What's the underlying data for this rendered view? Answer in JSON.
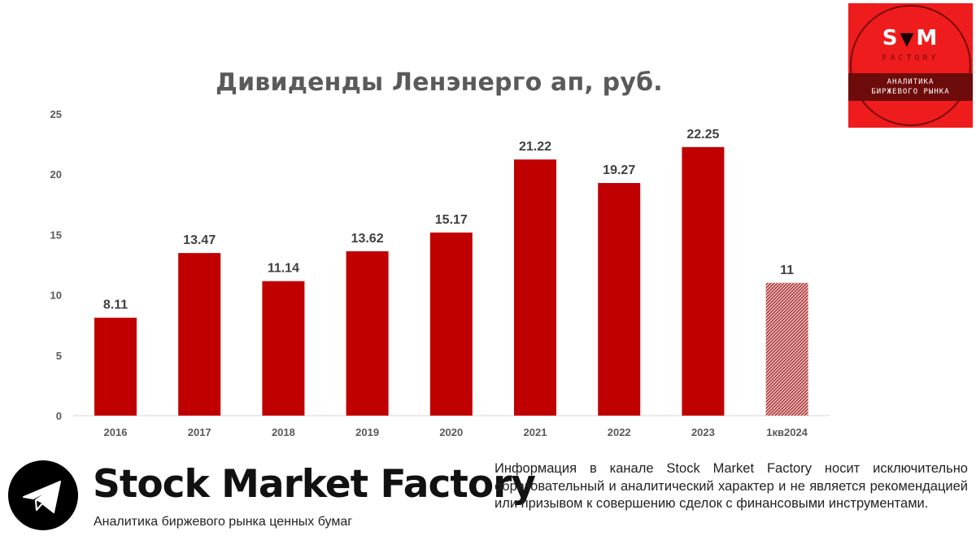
{
  "chart_data": {
    "type": "bar",
    "title": "Дивиденды Ленэнерго ап, руб.",
    "categories": [
      "2016",
      "2017",
      "2018",
      "2019",
      "2020",
      "2021",
      "2022",
      "2023",
      "1кв2024"
    ],
    "values": [
      8.11,
      13.47,
      11.14,
      13.62,
      15.17,
      21.22,
      19.27,
      22.25,
      11
    ],
    "data_labels": [
      "8.11",
      "13.47",
      "11.14",
      "13.62",
      "15.17",
      "21.22",
      "19.27",
      "22.25",
      "11"
    ],
    "hatched": [
      false,
      false,
      false,
      false,
      false,
      false,
      false,
      false,
      true
    ],
    "ylim": [
      0,
      25
    ],
    "yticks": [
      0,
      5,
      10,
      15,
      20,
      25
    ],
    "xlabel": "",
    "ylabel": "",
    "grid": false,
    "bar_color": "#c00000"
  },
  "logo": {
    "s": "S",
    "m": "M",
    "bull_icon": "bull-head-icon",
    "factory": "FACTORY",
    "band_line1": "АНАЛИТИКА",
    "band_line2": "БИРЖЕВОГО РЫНКА",
    "bg_color": "#ee1c1c"
  },
  "footer": {
    "telegram_icon": "telegram-icon",
    "brand": "Stock Market Factory",
    "subtitle": "Аналитика биржевого рынка ценных бумаг",
    "disclaimer": "Информация в канале Stock Market Factory носит исключительно образовательный и аналитический характер и не является рекомендацией или призывом к совершению сделок с финансовыми инструментами."
  }
}
